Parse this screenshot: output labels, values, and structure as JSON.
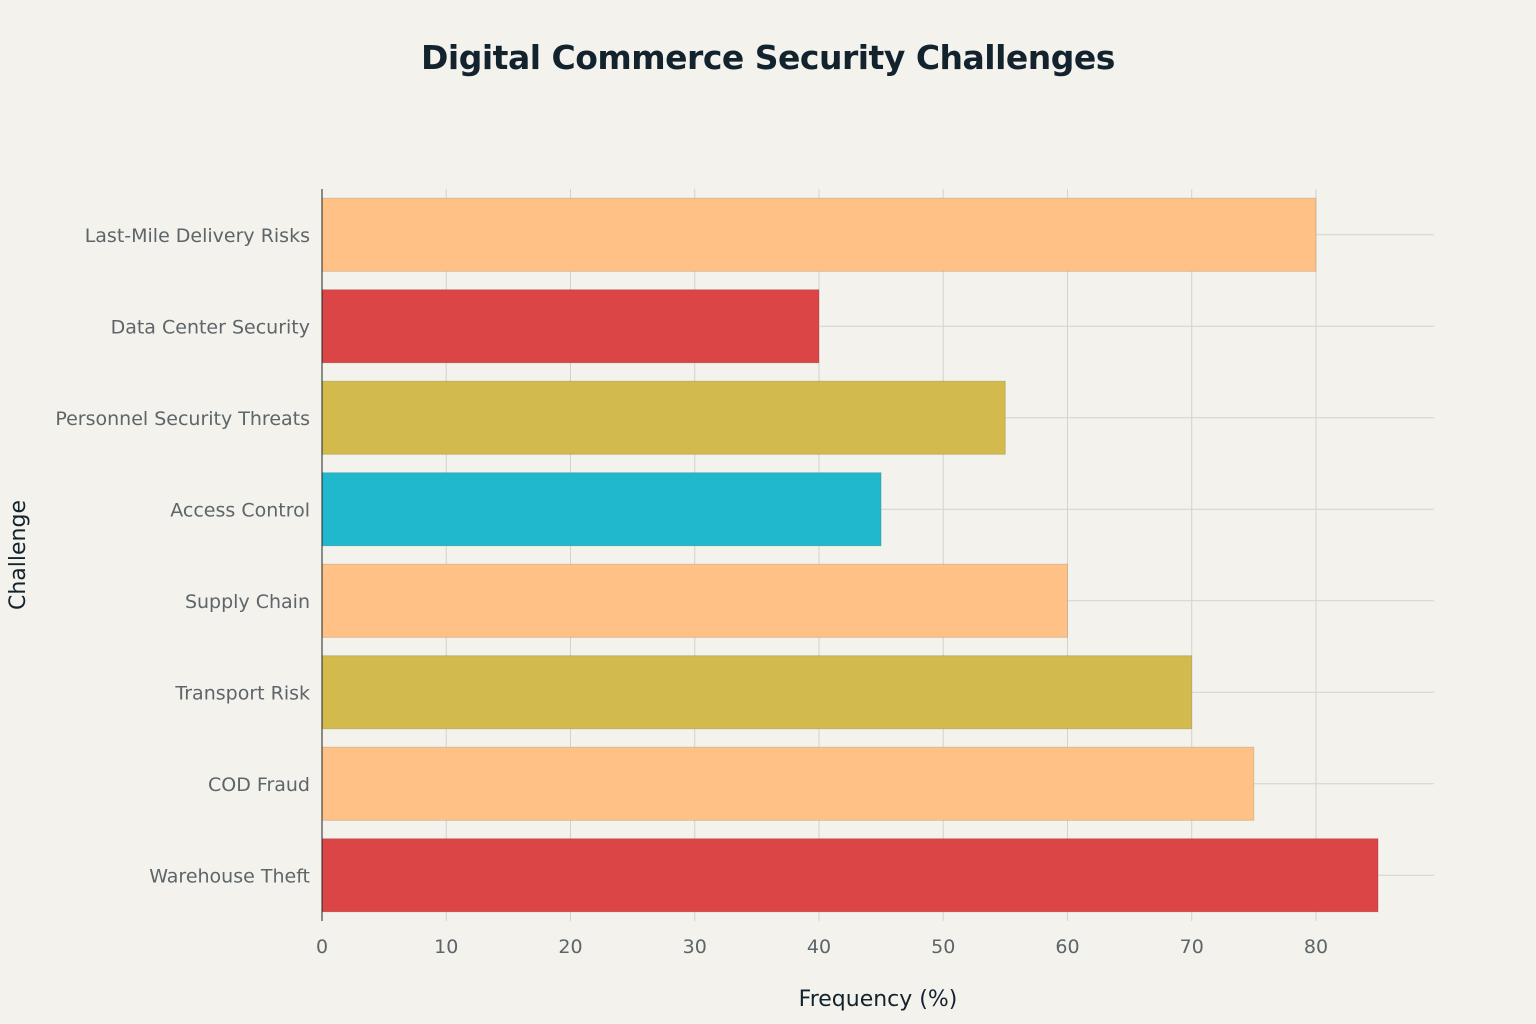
{
  "chart_data": {
    "type": "bar",
    "orientation": "horizontal",
    "title": "Digital Commerce Security Challenges",
    "xlabel": "Frequency (%)",
    "ylabel": "Challenge",
    "xlim": [
      0,
      89.5
    ],
    "xticks": [
      0,
      10,
      20,
      30,
      40,
      50,
      60,
      70,
      80
    ],
    "grid": true,
    "categories": [
      "Warehouse Theft",
      "COD Fraud",
      "Transport Risk",
      "Supply Chain",
      "Access Control",
      "Personnel Security Threats",
      "Data Center Security",
      "Last-Mile Delivery Risks"
    ],
    "values": [
      85,
      75,
      70,
      60,
      45,
      55,
      40,
      80
    ],
    "colors": [
      "#db4545",
      "#ffc185",
      "#d2ba4c",
      "#ffc185",
      "#1fb8cd",
      "#d2ba4c",
      "#db4545",
      "#ffc185"
    ]
  }
}
